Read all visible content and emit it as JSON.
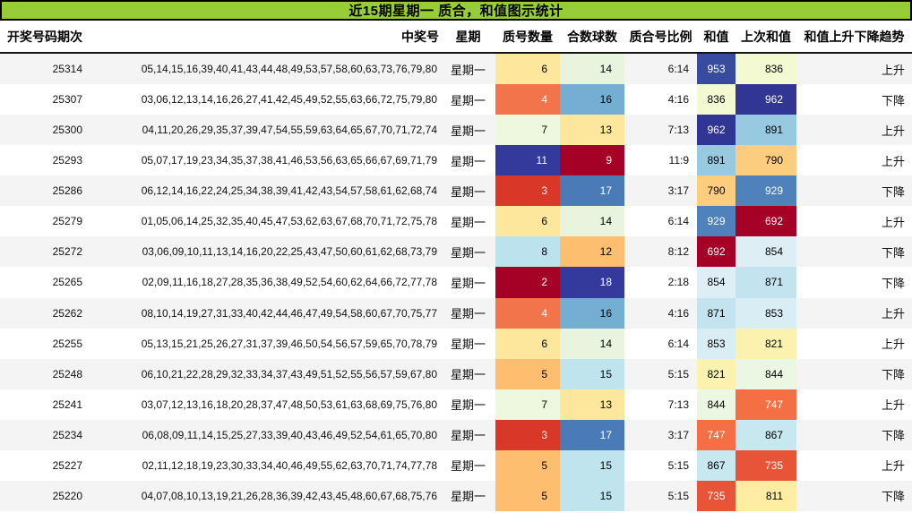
{
  "title": "近15期星期一 质合，和值图示统计",
  "columns": {
    "period": "开奖号码期次",
    "numbers": "中奖号",
    "week": "星期",
    "prime": "质号数量",
    "composite": "合数球数",
    "ratio": "质合号比例",
    "sum": "和值",
    "prev": "上次和值",
    "trend": "和值上升下降趋势"
  },
  "colors": {
    "title_bar_bg": "#97cd35",
    "title_bar_border": "#000000",
    "header_divider": "#141414",
    "row_alt_bg": "#f4f4f4",
    "row_bg": "#ffffff",
    "heat_min": "#a50026",
    "heat_mid": "#ffffbf",
    "heat_max": "#313695"
  },
  "rows": [
    {
      "period": "25314",
      "numbers": "05,14,15,16,39,40,41,43,44,48,49,53,57,58,60,63,73,76,79,80",
      "week": "星期一",
      "prime": {
        "v": "6",
        "bg": "#fce79d",
        "fg": "#000000"
      },
      "composite": {
        "v": "14",
        "bg": "#e8f4dd",
        "fg": "#000000"
      },
      "ratio": "6:14",
      "sum": {
        "v": "953",
        "bg": "#384b9f",
        "fg": "#ffffff"
      },
      "prev": {
        "v": "836",
        "bg": "#f3f9d0",
        "fg": "#000000"
      },
      "trend": "上升"
    },
    {
      "period": "25307",
      "numbers": "03,06,12,13,14,16,26,27,41,42,45,49,52,55,63,66,72,75,79,80",
      "week": "星期一",
      "prime": {
        "v": "4",
        "bg": "#f2744a",
        "fg": "#ffffff"
      },
      "composite": {
        "v": "16",
        "bg": "#74aed3",
        "fg": "#000000"
      },
      "ratio": "4:16",
      "sum": {
        "v": "836",
        "bg": "#f3f9d0",
        "fg": "#000000"
      },
      "prev": {
        "v": "962",
        "bg": "#313695",
        "fg": "#ffffff"
      },
      "trend": "下降"
    },
    {
      "period": "25300",
      "numbers": "04,11,20,26,29,35,37,39,47,54,55,59,63,64,65,67,70,71,72,74",
      "week": "星期一",
      "prime": {
        "v": "7",
        "bg": "#eef8df",
        "fg": "#000000"
      },
      "composite": {
        "v": "13",
        "bg": "#fce79d",
        "fg": "#000000"
      },
      "ratio": "7:13",
      "sum": {
        "v": "962",
        "bg": "#313695",
        "fg": "#ffffff"
      },
      "prev": {
        "v": "891",
        "bg": "#97c9e0",
        "fg": "#000000"
      },
      "trend": "上升"
    },
    {
      "period": "25293",
      "numbers": "05,07,17,19,23,34,35,37,38,41,46,53,56,63,65,66,67,69,71,79",
      "week": "星期一",
      "prime": {
        "v": "11",
        "bg": "#333a9b",
        "fg": "#ffffff"
      },
      "composite": {
        "v": "9",
        "bg": "#a50026",
        "fg": "#ffffff"
      },
      "ratio": "11:9",
      "sum": {
        "v": "891",
        "bg": "#97c9e0",
        "fg": "#000000"
      },
      "prev": {
        "v": "790",
        "bg": "#fdcd7f",
        "fg": "#000000"
      },
      "trend": "上升"
    },
    {
      "period": "25286",
      "numbers": "06,12,14,16,22,24,25,34,38,39,41,42,43,54,57,58,61,62,68,74",
      "week": "星期一",
      "prime": {
        "v": "3",
        "bg": "#d93728",
        "fg": "#ffffff"
      },
      "composite": {
        "v": "17",
        "bg": "#4a7bb7",
        "fg": "#ffffff"
      },
      "ratio": "3:17",
      "sum": {
        "v": "790",
        "bg": "#fdcd7f",
        "fg": "#000000"
      },
      "prev": {
        "v": "929",
        "bg": "#4f81ba",
        "fg": "#ffffff"
      },
      "trend": "下降"
    },
    {
      "period": "25279",
      "numbers": "01,05,06,14,25,32,35,40,45,47,53,62,63,67,68,70,71,72,75,78",
      "week": "星期一",
      "prime": {
        "v": "6",
        "bg": "#fce79d",
        "fg": "#000000"
      },
      "composite": {
        "v": "14",
        "bg": "#e8f4dd",
        "fg": "#000000"
      },
      "ratio": "6:14",
      "sum": {
        "v": "929",
        "bg": "#4f81ba",
        "fg": "#ffffff"
      },
      "prev": {
        "v": "692",
        "bg": "#a50026",
        "fg": "#ffffff"
      },
      "trend": "上升"
    },
    {
      "period": "25272",
      "numbers": "03,06,09,10,11,13,14,16,20,22,25,43,47,50,60,61,62,68,73,79",
      "week": "星期一",
      "prime": {
        "v": "8",
        "bg": "#bce2ee",
        "fg": "#000000"
      },
      "composite": {
        "v": "12",
        "bg": "#fdbe70",
        "fg": "#000000"
      },
      "ratio": "8:12",
      "sum": {
        "v": "692",
        "bg": "#a50026",
        "fg": "#ffffff"
      },
      "prev": {
        "v": "854",
        "bg": "#ddeef5",
        "fg": "#000000"
      },
      "trend": "下降"
    },
    {
      "period": "25265",
      "numbers": "02,09,11,16,18,27,28,35,36,38,49,52,54,60,62,64,66,72,77,78",
      "week": "星期一",
      "prime": {
        "v": "2",
        "bg": "#a50026",
        "fg": "#ffffff"
      },
      "composite": {
        "v": "18",
        "bg": "#333a9b",
        "fg": "#ffffff"
      },
      "ratio": "2:18",
      "sum": {
        "v": "854",
        "bg": "#ddeef5",
        "fg": "#000000"
      },
      "prev": {
        "v": "871",
        "bg": "#c3e3ef",
        "fg": "#000000"
      },
      "trend": "下降"
    },
    {
      "period": "25262",
      "numbers": "08,10,14,19,27,31,33,40,42,44,46,47,49,54,58,60,67,70,75,77",
      "week": "星期一",
      "prime": {
        "v": "4",
        "bg": "#f2744a",
        "fg": "#ffffff"
      },
      "composite": {
        "v": "16",
        "bg": "#74aed3",
        "fg": "#000000"
      },
      "ratio": "4:16",
      "sum": {
        "v": "871",
        "bg": "#c3e3ef",
        "fg": "#000000"
      },
      "prev": {
        "v": "853",
        "bg": "#d8edf4",
        "fg": "#000000"
      },
      "trend": "上升"
    },
    {
      "period": "25255",
      "numbers": "05,13,15,21,25,26,27,31,37,39,46,50,54,56,57,59,65,70,78,79",
      "week": "星期一",
      "prime": {
        "v": "6",
        "bg": "#fce79d",
        "fg": "#000000"
      },
      "composite": {
        "v": "14",
        "bg": "#e8f4dd",
        "fg": "#000000"
      },
      "ratio": "6:14",
      "sum": {
        "v": "853",
        "bg": "#d8edf4",
        "fg": "#000000"
      },
      "prev": {
        "v": "821",
        "bg": "#faf2ae",
        "fg": "#000000"
      },
      "trend": "上升"
    },
    {
      "period": "25248",
      "numbers": "06,10,21,22,28,29,32,33,34,37,43,49,51,52,55,56,57,59,67,80",
      "week": "星期一",
      "prime": {
        "v": "5",
        "bg": "#fdbe70",
        "fg": "#000000"
      },
      "composite": {
        "v": "15",
        "bg": "#c0e4ee",
        "fg": "#000000"
      },
      "ratio": "5:15",
      "sum": {
        "v": "821",
        "bg": "#faf2ae",
        "fg": "#000000"
      },
      "prev": {
        "v": "844",
        "bg": "#ebf7e3",
        "fg": "#000000"
      },
      "trend": "下降"
    },
    {
      "period": "25241",
      "numbers": "03,07,12,13,16,18,20,28,37,47,48,50,53,61,63,68,69,75,76,80",
      "week": "星期一",
      "prime": {
        "v": "7",
        "bg": "#eef8df",
        "fg": "#000000"
      },
      "composite": {
        "v": "13",
        "bg": "#fce79d",
        "fg": "#000000"
      },
      "ratio": "7:13",
      "sum": {
        "v": "844",
        "bg": "#ebf7e3",
        "fg": "#000000"
      },
      "prev": {
        "v": "747",
        "bg": "#f47044",
        "fg": "#ffffff"
      },
      "trend": "上升"
    },
    {
      "period": "25234",
      "numbers": "06,08,09,11,14,15,25,27,33,39,40,43,46,49,52,54,61,65,70,80",
      "week": "星期一",
      "prime": {
        "v": "3",
        "bg": "#d93728",
        "fg": "#ffffff"
      },
      "composite": {
        "v": "17",
        "bg": "#4a7bb7",
        "fg": "#ffffff"
      },
      "ratio": "3:17",
      "sum": {
        "v": "747",
        "bg": "#f47044",
        "fg": "#ffffff"
      },
      "prev": {
        "v": "867",
        "bg": "#c7e7f1",
        "fg": "#000000"
      },
      "trend": "下降"
    },
    {
      "period": "25227",
      "numbers": "02,11,12,18,19,23,30,33,34,40,46,49,55,62,63,70,71,74,77,78",
      "week": "星期一",
      "prime": {
        "v": "5",
        "bg": "#fdbe70",
        "fg": "#000000"
      },
      "composite": {
        "v": "15",
        "bg": "#c0e4ee",
        "fg": "#000000"
      },
      "ratio": "5:15",
      "sum": {
        "v": "867",
        "bg": "#c7e7f1",
        "fg": "#000000"
      },
      "prev": {
        "v": "735",
        "bg": "#e85438",
        "fg": "#ffffff"
      },
      "trend": "上升"
    },
    {
      "period": "25220",
      "numbers": "04,07,08,10,13,19,21,26,28,36,39,42,43,45,48,60,67,68,75,76",
      "week": "星期一",
      "prime": {
        "v": "5",
        "bg": "#fdbe70",
        "fg": "#000000"
      },
      "composite": {
        "v": "15",
        "bg": "#c0e4ee",
        "fg": "#000000"
      },
      "ratio": "5:15",
      "sum": {
        "v": "735",
        "bg": "#e85438",
        "fg": "#ffffff"
      },
      "prev": {
        "v": "811",
        "bg": "#feeda3",
        "fg": "#000000"
      },
      "trend": "下降"
    }
  ]
}
